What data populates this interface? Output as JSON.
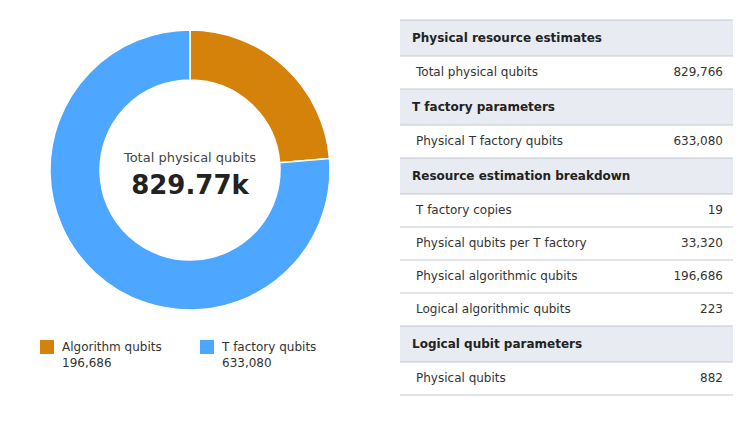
{
  "chart_data": {
    "type": "pie",
    "donut": true,
    "categories": [
      "Algorithm qubits\n196,686",
      "T factory qubits\n633,080"
    ],
    "values": [
      196686,
      633080
    ],
    "colors": [
      "#d4820a",
      "#4da6ff"
    ],
    "legend": "bottom",
    "annotations": [
      "Total physical qubits",
      "829.77k"
    ],
    "table_sections": [
      {
        "header": "Physical resource estimates",
        "rows": [
          {
            "label": "Total physical qubits",
            "value": "829,766"
          }
        ]
      },
      {
        "header": "T factory parameters",
        "rows": [
          {
            "label": "Physical T factory qubits",
            "value": "633,080"
          }
        ]
      },
      {
        "header": "Resource estimation breakdown",
        "rows": [
          {
            "label": "T factory copies",
            "value": "19"
          },
          {
            "label": "Physical qubits per T factory",
            "value": "33,320"
          },
          {
            "label": "Physical algorithmic qubits",
            "value": "196,686"
          },
          {
            "label": "Logical algorithmic qubits",
            "value": "223"
          }
        ]
      },
      {
        "header": "Logical qubit parameters",
        "rows": [
          {
            "label": "Physical qubits",
            "value": "882"
          }
        ]
      }
    ]
  }
}
